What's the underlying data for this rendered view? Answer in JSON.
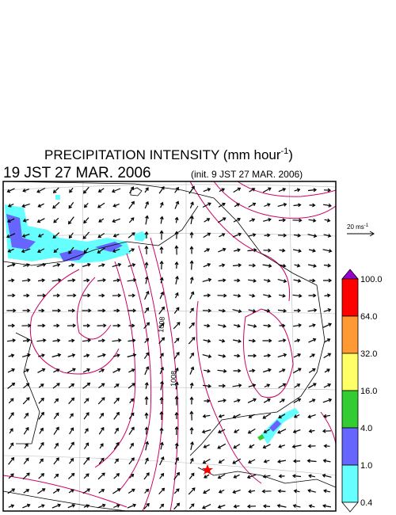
{
  "header": {
    "title_main": "PRECIPITATION INTENSITY (mm hour",
    "title_sup": "-1",
    "title_end": ")",
    "valid_time": "19 JST 27 MAR. 2006",
    "init_time": "(init. 9 JST 27 MAR. 2006)"
  },
  "scale_arrow": {
    "label": "20 ms",
    "label_sup": "-1"
  },
  "contour_labels": [
    "1008",
    "1008"
  ],
  "colorbar": {
    "labels": [
      "100.0",
      "64.0",
      "32.0",
      "16.0",
      "4.0",
      "1.0",
      "0.4"
    ],
    "colors": [
      "#ff0000",
      "#ff9933",
      "#ffff66",
      "#33cc33",
      "#6666ff",
      "#66ffff"
    ],
    "over_color": "#9900cc",
    "under_color": "#ffffff"
  }
}
